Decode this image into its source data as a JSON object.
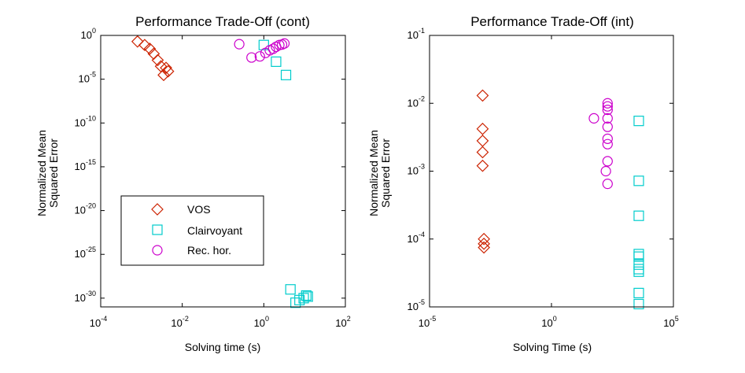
{
  "chart_data": [
    {
      "type": "scatter",
      "title": "Performance Trade-Off (cont)",
      "xlabel": "Solving time (s)",
      "ylabel": [
        "Normalized Mean",
        "Squared Error"
      ],
      "xscale": "log",
      "yscale": "log",
      "xlim_exp": [
        -4,
        2
      ],
      "ylim_exp": [
        -31,
        0
      ],
      "x_tick_exps": [
        -4,
        -2,
        0,
        2
      ],
      "y_tick_exps": [
        0,
        -5,
        -10,
        -15,
        -20,
        -25,
        -30
      ],
      "grid": false,
      "legend_position": "lower-left",
      "series": [
        {
          "name": "VOS",
          "color": "#cc2200",
          "marker": "diamond",
          "x": [
            0.0008,
            0.0012,
            0.0016,
            0.002,
            0.0025,
            0.003,
            0.0035,
            0.004,
            0.0045
          ],
          "y": [
            0.2,
            0.08,
            0.03,
            0.008,
            0.0015,
            0.0003,
            3e-05,
            0.0002,
            8e-05
          ]
        },
        {
          "name": "Clairvoyant",
          "color": "#00cccc",
          "marker": "square",
          "x": [
            1.0,
            2.0,
            3.5,
            4.5,
            6.0,
            7.5,
            9.5,
            11.0,
            12.0
          ],
          "y": [
            0.08,
            0.001,
            3e-05,
            1e-29,
            3e-31,
            6e-31,
            1e-30,
            2e-30,
            1.5e-30
          ]
        },
        {
          "name": "Rec. hor.",
          "color": "#cc00cc",
          "marker": "circle",
          "x": [
            0.25,
            0.5,
            0.8,
            1.1,
            1.4,
            1.7,
            2.0,
            2.4,
            2.8,
            3.2
          ],
          "y": [
            0.1,
            0.003,
            0.004,
            0.01,
            0.02,
            0.03,
            0.05,
            0.08,
            0.09,
            0.12
          ]
        }
      ]
    },
    {
      "type": "scatter",
      "title": "Performance Trade-Off (int)",
      "xlabel": "Solving Time (s)",
      "ylabel": [
        "Normalized Mean",
        "Squared Error"
      ],
      "xscale": "log",
      "yscale": "log",
      "xlim_exp": [
        -5,
        5
      ],
      "ylim_exp": [
        -5,
        -1
      ],
      "x_tick_exps": [
        -5,
        0,
        5
      ],
      "y_tick_exps": [
        -1,
        -2,
        -3,
        -4,
        -5
      ],
      "grid": false,
      "series": [
        {
          "name": "VOS",
          "color": "#cc2200",
          "marker": "diamond",
          "x": [
            0.0015,
            0.0015,
            0.0015,
            0.0015,
            0.0015,
            0.0017,
            0.0017,
            0.0017
          ],
          "y": [
            0.013,
            0.0042,
            0.0028,
            0.0019,
            0.0012,
            0.0001,
            8.5e-05,
            7.5e-05
          ]
        },
        {
          "name": "Rec. hor.",
          "color": "#cc00cc",
          "marker": "circle",
          "x": [
            55,
            170,
            200,
            200,
            200,
            200,
            200,
            200,
            200,
            200,
            200
          ],
          "y": [
            0.006,
            0.001,
            0.01,
            0.008,
            0.006,
            0.0045,
            0.003,
            0.0025,
            0.0014,
            0.00065,
            0.009
          ]
        },
        {
          "name": "Clairvoyant",
          "color": "#00cccc",
          "marker": "square",
          "x": [
            3800,
            3800,
            3800,
            3800,
            3800,
            3800,
            3800,
            3800,
            3800,
            3800
          ],
          "y": [
            0.0055,
            0.00072,
            0.00022,
            6e-05,
            5.5e-05,
            4.2e-05,
            3.6e-05,
            3.3e-05,
            1.6e-05,
            1.1e-05
          ]
        }
      ]
    }
  ]
}
